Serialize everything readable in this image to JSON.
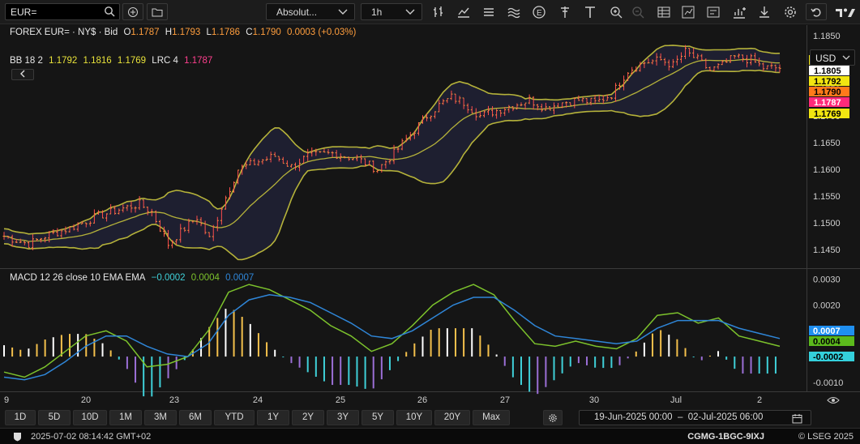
{
  "toolbar": {
    "symbol": "EUR=",
    "price_type": "Absolut...",
    "interval": "1h"
  },
  "legend": {
    "instrument": "FOREX EUR= · NY$ · Bid",
    "o_label": "O",
    "o_value": "1.1787",
    "h_label": "H",
    "h_value": "1.1793",
    "l_label": "L",
    "l_value": "1.1786",
    "c_label": "C",
    "c_value": "1.1790",
    "change": "0.0003 (+0.03%)",
    "bb_label": "BB 18 2",
    "bb_mid": "1.1792",
    "bb_upper": "1.1816",
    "bb_lower": "1.1769",
    "lrc_label": "LRC 4",
    "lrc_value": "1.1787",
    "macd_label": "MACD 12 26 close 10 EMA EMA",
    "macd_hist": "−0.0002",
    "macd_line": "0.0004",
    "macd_signal": "0.0007"
  },
  "currency": "USD",
  "colors": {
    "bg": "#151515",
    "candle": "#ff9e3d",
    "wick": "#ff4d4d",
    "bb": "#b5b23a",
    "bb_fill": "#1f2033",
    "macd_line": "#7cc22c",
    "signal": "#2f86d8",
    "hist_pos": "#f4c04c",
    "hist_pos_light": "#ffffff",
    "hist_neg": "#3fd0d8",
    "hist_neg_purple": "#9b6fd6"
  },
  "range_buttons": [
    "1D",
    "5D",
    "10D",
    "1M",
    "3M",
    "6M",
    "YTD",
    "1Y",
    "2Y",
    "3Y",
    "5Y",
    "10Y",
    "20Y",
    "Max"
  ],
  "date_range": "19-Jun-2025 00:00  –  02-Jul-2025 06:00",
  "status": {
    "timestamp": "2025-07-02 08:14:42 GMT+02",
    "id": "CGMG-1BGC-9IXJ",
    "copyright": "© LSEG 2025"
  },
  "chart_data": [
    {
      "type": "candlestick",
      "title": "FOREX EUR= · NY$ · Bid",
      "x_ticks": [
        "9",
        "20",
        "23",
        "24",
        "25",
        "26",
        "27",
        "30",
        "Jul",
        "2"
      ],
      "y_ticks": [
        "1.1850",
        "1.1800",
        "1.1750",
        "1.1700",
        "1.1650",
        "1.1600",
        "1.1550",
        "1.1500",
        "1.1450"
      ],
      "ylim": [
        1.1415,
        1.187
      ],
      "close_path": [
        [
          0,
          1.1475
        ],
        [
          6,
          1.146
        ],
        [
          10,
          1.1475
        ],
        [
          16,
          1.149
        ],
        [
          22,
          1.151
        ],
        [
          28,
          1.1525
        ],
        [
          33,
          1.1535
        ],
        [
          36,
          1.152
        ],
        [
          40,
          1.146
        ],
        [
          44,
          1.149
        ],
        [
          47,
          1.151
        ],
        [
          50,
          1.147
        ],
        [
          53,
          1.153
        ],
        [
          57,
          1.16
        ],
        [
          62,
          1.1615
        ],
        [
          66,
          1.1625
        ],
        [
          70,
          1.1605
        ],
        [
          74,
          1.1625
        ],
        [
          80,
          1.163
        ],
        [
          86,
          1.162
        ],
        [
          91,
          1.16
        ],
        [
          95,
          1.163
        ],
        [
          99,
          1.1665
        ],
        [
          103,
          1.17
        ],
        [
          106,
          1.172
        ],
        [
          109,
          1.1735
        ],
        [
          112,
          1.1725
        ],
        [
          116,
          1.17
        ],
        [
          120,
          1.171
        ],
        [
          124,
          1.172
        ],
        [
          128,
          1.173
        ],
        [
          132,
          1.1715
        ],
        [
          136,
          1.1725
        ],
        [
          140,
          1.173
        ],
        [
          144,
          1.1725
        ],
        [
          148,
          1.174
        ],
        [
          152,
          1.1785
        ],
        [
          156,
          1.18
        ],
        [
          160,
          1.1805
        ],
        [
          163,
          1.1795
        ],
        [
          166,
          1.182
        ],
        [
          169,
          1.1805
        ],
        [
          172,
          1.1785
        ],
        [
          175,
          1.1795
        ],
        [
          178,
          1.181
        ],
        [
          182,
          1.1805
        ],
        [
          185,
          1.179
        ]
      ],
      "bb_upper": "1.1816",
      "bb_mid": "1.1792",
      "bb_lower": "1.1769",
      "last_price": "1.1805",
      "lrc": "1.1787",
      "close": "1.1790"
    },
    {
      "type": "line",
      "title": "MACD 12 26 close 10 EMA EMA",
      "y_ticks": [
        "0.0030",
        "0.0020",
        "0.0010",
        "0.0000",
        "-0.0010"
      ],
      "ylim": [
        -0.00135,
        0.0034
      ],
      "series": [
        {
          "name": "MACD",
          "values": [
            -0.0006,
            -0.0008,
            -0.0004,
            0.0002,
            0.0008,
            0.001,
            0.0006,
            -0.0004,
            -0.0003,
            0.0,
            0.001,
            0.0025,
            0.0028,
            0.0026,
            0.0022,
            0.0018,
            0.0012,
            0.0008,
            0.0002,
            0.0005,
            0.0012,
            0.002,
            0.0025,
            0.0028,
            0.0024,
            0.0014,
            0.0005,
            0.0004,
            0.0006,
            0.0004,
            0.0003,
            0.0007,
            0.0016,
            0.0017,
            0.0013,
            0.0015,
            0.0008,
            0.0006,
            0.0004
          ]
        },
        {
          "name": "Signal",
          "values": [
            -0.0008,
            -0.0009,
            -0.0007,
            -0.0002,
            0.0004,
            0.0008,
            0.0008,
            0.0004,
            0.0001,
            0.0,
            0.0005,
            0.0016,
            0.0022,
            0.0024,
            0.0023,
            0.0021,
            0.0017,
            0.0013,
            0.0008,
            0.0007,
            0.001,
            0.0015,
            0.002,
            0.0023,
            0.0023,
            0.0018,
            0.0012,
            0.0008,
            0.0007,
            0.0006,
            0.0005,
            0.0006,
            0.0011,
            0.0014,
            0.0014,
            0.0014,
            0.0011,
            0.0009,
            0.0007
          ]
        }
      ],
      "last_values": {
        "signal": "0.0007",
        "macd": "0.0004",
        "histogram": "-0.0002"
      }
    }
  ]
}
